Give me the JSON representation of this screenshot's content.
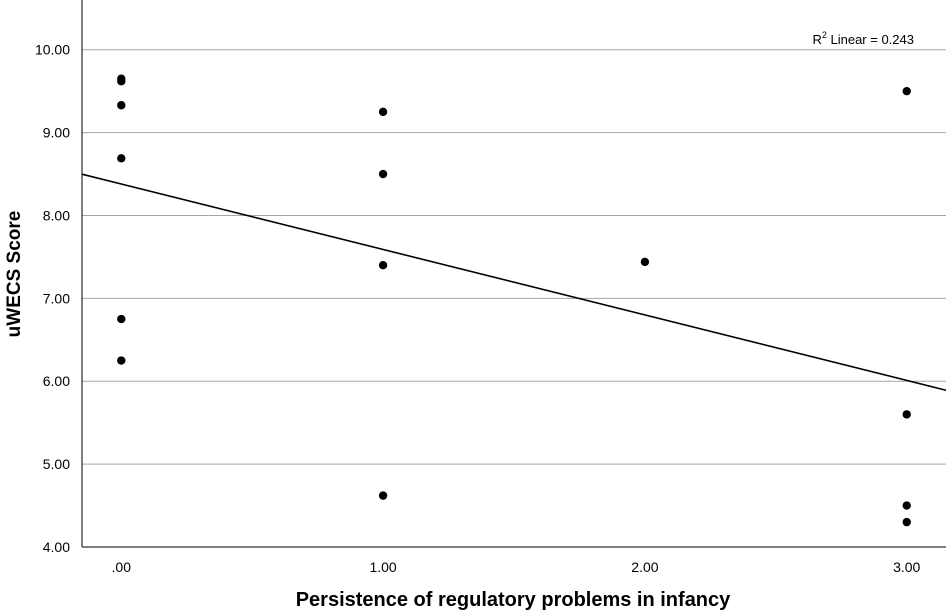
{
  "chart_data": {
    "type": "scatter",
    "title": "",
    "xlabel": "Persistence of regulatory problems in infancy",
    "ylabel": "uWECS Score",
    "xlim": [
      -0.15,
      3.15
    ],
    "ylim": [
      4.0,
      10.6
    ],
    "xticks": [
      0,
      1,
      2,
      3
    ],
    "xtick_labels": [
      ".00",
      "1.00",
      "2.00",
      "3.00"
    ],
    "yticks": [
      4,
      5,
      6,
      7,
      8,
      9,
      10
    ],
    "ytick_labels": [
      "4.00",
      "5.00",
      "6.00",
      "7.00",
      "8.00",
      "9.00",
      "10.00"
    ],
    "grid": "horizontal",
    "series": [
      {
        "x": [
          0,
          0,
          0,
          0,
          0,
          0,
          1,
          1,
          1,
          1,
          2,
          3,
          3,
          3,
          3
        ],
        "y": [
          9.65,
          9.62,
          9.33,
          8.69,
          6.75,
          6.25,
          9.25,
          8.5,
          7.4,
          4.62,
          7.44,
          9.5,
          5.6,
          4.5,
          4.3
        ]
      }
    ],
    "fit_line": {
      "type": "linear",
      "intercept": 8.38,
      "slope": -0.79
    },
    "annotation": {
      "r2_prefix": "R",
      "r2_superscript": "2",
      "r2_text": " Linear = 0.243"
    }
  }
}
